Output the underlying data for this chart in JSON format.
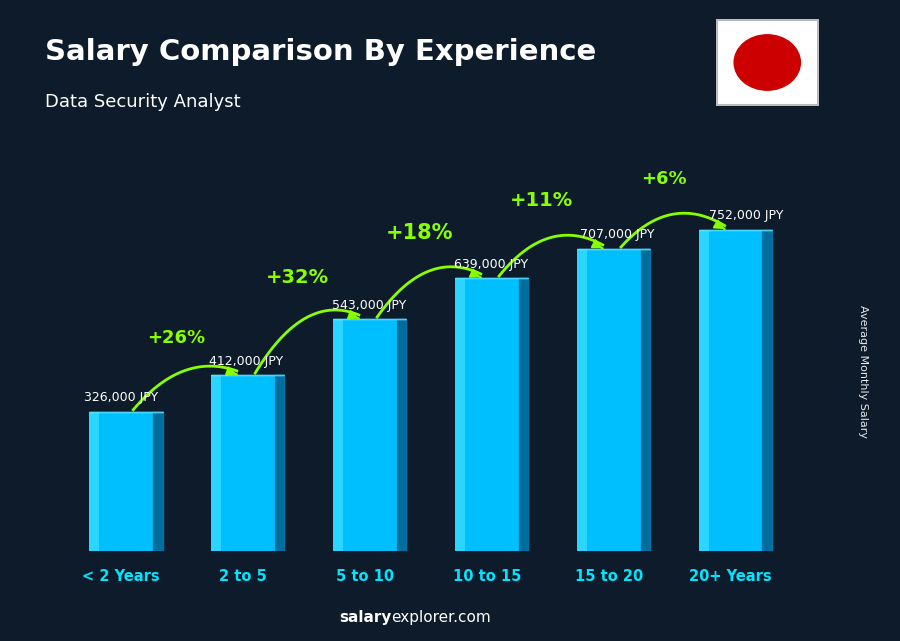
{
  "title": "Salary Comparison By Experience",
  "subtitle": "Data Security Analyst",
  "categories": [
    "< 2 Years",
    "2 to 5",
    "5 to 10",
    "10 to 15",
    "15 to 20",
    "20+ Years"
  ],
  "values": [
    326000,
    412000,
    543000,
    639000,
    707000,
    752000
  ],
  "labels": [
    "326,000 JPY",
    "412,000 JPY",
    "543,000 JPY",
    "639,000 JPY",
    "707,000 JPY",
    "752,000 JPY"
  ],
  "pct_changes": [
    "+26%",
    "+32%",
    "+18%",
    "+11%",
    "+6%"
  ],
  "bar_color": "#00bfff",
  "bar_left_color": "#007aaa",
  "bar_top_color": "#00d5ff",
  "background_color": "#0d1b2a",
  "text_color_white": "#ffffff",
  "text_color_green": "#88ff00",
  "text_color_cyan": "#00e5ff",
  "ylabel": "Average Monthly Salary",
  "footer_bold": "salary",
  "footer_normal": "explorer.com",
  "ylim_max": 870000,
  "flag_circle_color": "#cc0000",
  "flag_bg": "#ffffff",
  "bar_width": 0.52
}
